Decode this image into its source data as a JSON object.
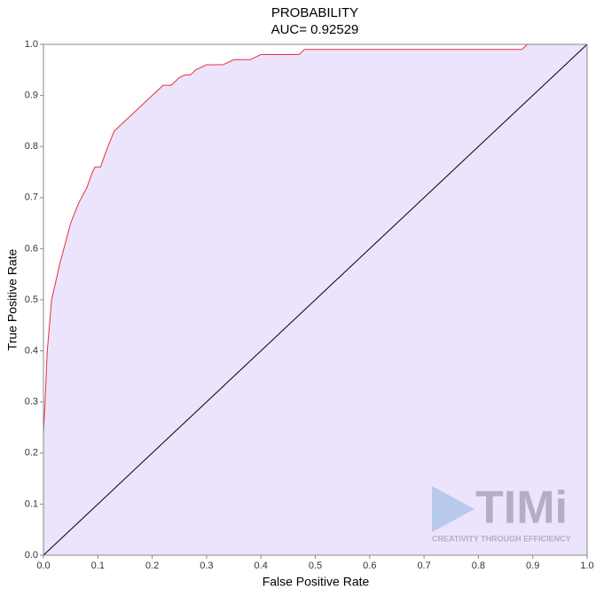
{
  "chart_data": {
    "type": "line",
    "title": "PROBABILITY",
    "subtitle": "AUC=  0.92529",
    "x_label": "False Positive Rate",
    "y_label": "True Positive Rate",
    "xlim": [
      0,
      1
    ],
    "ylim": [
      0,
      1
    ],
    "xticks": [
      {
        "value": 0,
        "label": "0.0"
      },
      0.1,
      0.2,
      0.3,
      0.4,
      0.5,
      0.6,
      0.7,
      0.8,
      0.9,
      {
        "value": 1,
        "label": "1.0"
      }
    ],
    "yticks": [
      {
        "value": 0,
        "label": "0.0"
      },
      0.1,
      0.2,
      0.3,
      0.4,
      0.5,
      0.6,
      0.7,
      0.8,
      0.9,
      {
        "value": 1,
        "label": "1.0"
      }
    ],
    "fill": "#ebe4fc",
    "series": [
      {
        "color": "#e8303a",
        "x": [
          0,
          0.003,
          0.007,
          0.015,
          0.03,
          0.05,
          0.065,
          0.08,
          0.09,
          0.095,
          0.105,
          0.115,
          0.13,
          0.15,
          0.17,
          0.19,
          0.21,
          0.22,
          0.235,
          0.25,
          0.26,
          0.27,
          0.28,
          0.29,
          0.3,
          0.33,
          0.35,
          0.38,
          0.4,
          0.47,
          0.48,
          0.88,
          0.89,
          1
        ],
        "values": [
          0.24,
          0.3,
          0.4,
          0.5,
          0.57,
          0.65,
          0.69,
          0.72,
          0.75,
          0.76,
          0.76,
          0.79,
          0.83,
          0.85,
          0.87,
          0.89,
          0.91,
          0.92,
          0.92,
          0.935,
          0.94,
          0.94,
          0.95,
          0.955,
          0.96,
          0.96,
          0.97,
          0.97,
          0.98,
          0.98,
          0.99,
          0.99,
          1,
          1
        ]
      },
      {
        "color": "#000000",
        "x": [
          0,
          1
        ],
        "values": [
          0,
          1
        ]
      }
    ],
    "watermark": {
      "logo": "TIMi",
      "tagline": "CREATIVITY THROUGH EFFICIENCY"
    }
  }
}
